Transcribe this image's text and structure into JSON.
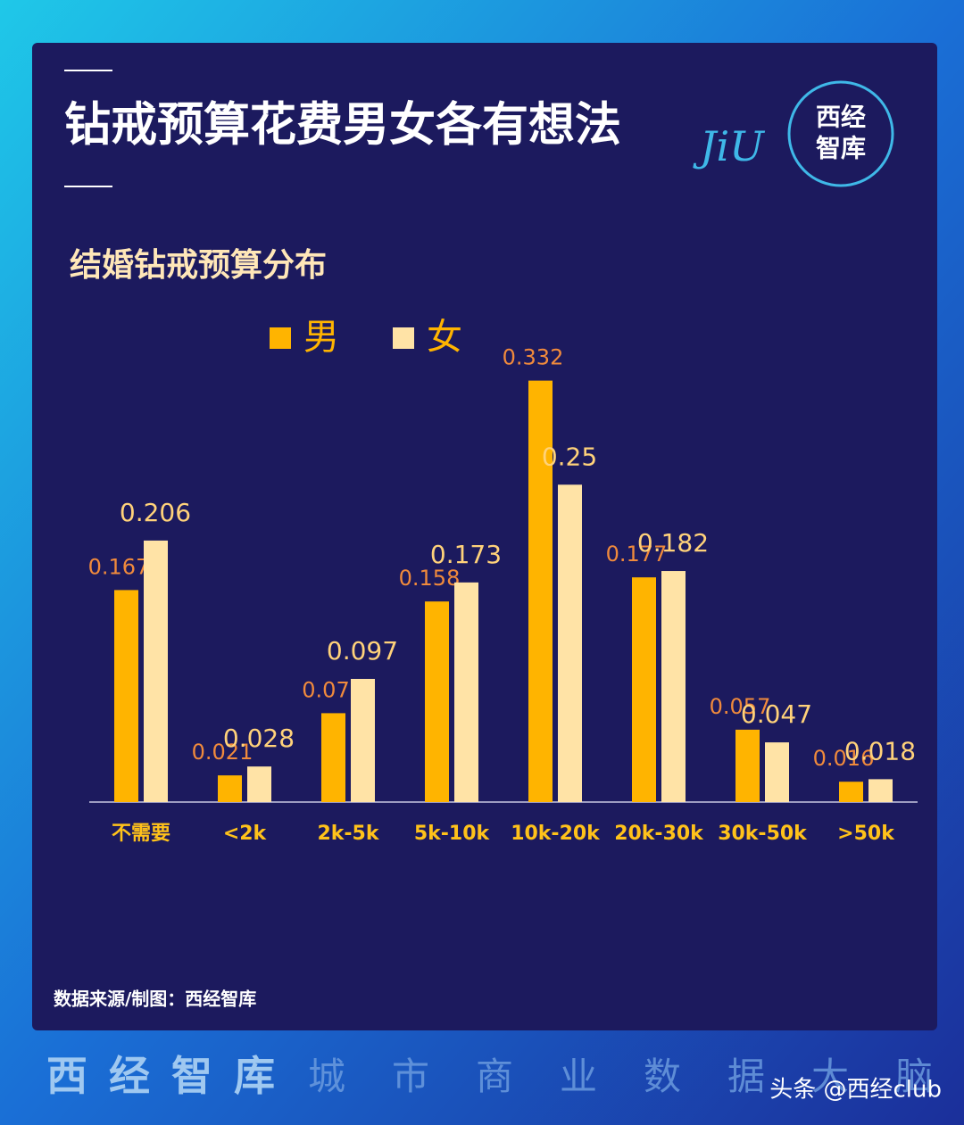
{
  "chart_data": {
    "type": "bar",
    "title": "钻戒预算花费男女各有想法",
    "subtitle": "结婚钻戒预算分布",
    "categories": [
      "不需要",
      "<2k",
      "2k-5k",
      "5k-10k",
      "10k-20k",
      "20k-30k",
      "30k-50k",
      ">50k"
    ],
    "series": [
      {
        "name": "男",
        "color": "#ffb400",
        "values": [
          0.167,
          0.021,
          0.07,
          0.158,
          0.332,
          0.177,
          0.057,
          0.016
        ]
      },
      {
        "name": "女",
        "color": "#ffe3a6",
        "values": [
          0.206,
          0.028,
          0.097,
          0.173,
          0.25,
          0.182,
          0.047,
          0.018
        ]
      }
    ],
    "ylim": [
      0,
      0.35
    ],
    "legend": "top-left"
  },
  "logo": {
    "mark": "JiU",
    "line1": "西经",
    "line2": "智库"
  },
  "source": "数据来源/制图：西经智库",
  "footer": {
    "brand": "西经智库",
    "slogan": "城市商业数据大脑"
  },
  "watermark": "头条 @西经club"
}
